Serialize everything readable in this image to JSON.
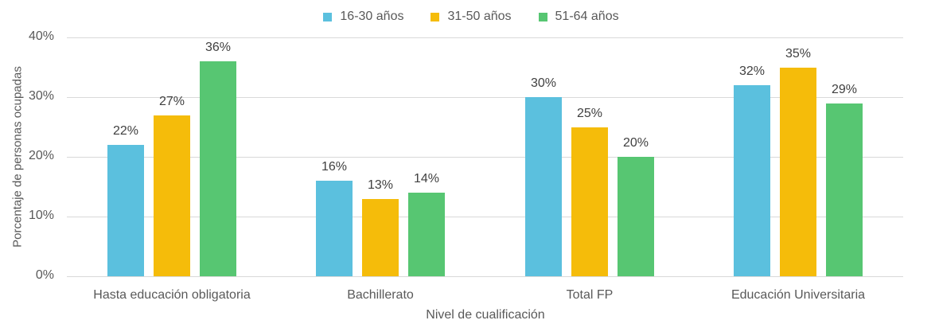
{
  "chart_data": {
    "type": "bar",
    "title": "",
    "xlabel": "Nivel de cualificación",
    "ylabel": "Porcentaje de personas ocupadas",
    "ylim": [
      0,
      40
    ],
    "yticks": [
      "0%",
      "10%",
      "20%",
      "30%",
      "40%"
    ],
    "grid": true,
    "legend_position": "top",
    "categories": [
      "Hasta educación obligatoria",
      "Bachillerato",
      "Total FP",
      "Educación Universitaria"
    ],
    "series": [
      {
        "name": "16-30 años",
        "color": "#5BC0DE",
        "values": [
          22,
          16,
          30,
          32
        ],
        "labels": [
          "22%",
          "16%",
          "30%",
          "32%"
        ]
      },
      {
        "name": "31-50 años",
        "color": "#F5BC0A",
        "values": [
          27,
          13,
          25,
          35
        ],
        "labels": [
          "27%",
          "13%",
          "25%",
          "35%"
        ]
      },
      {
        "name": "51-64 años",
        "color": "#57C672",
        "values": [
          36,
          14,
          20,
          29
        ],
        "labels": [
          "36%",
          "14%",
          "20%",
          "29%"
        ]
      }
    ]
  }
}
